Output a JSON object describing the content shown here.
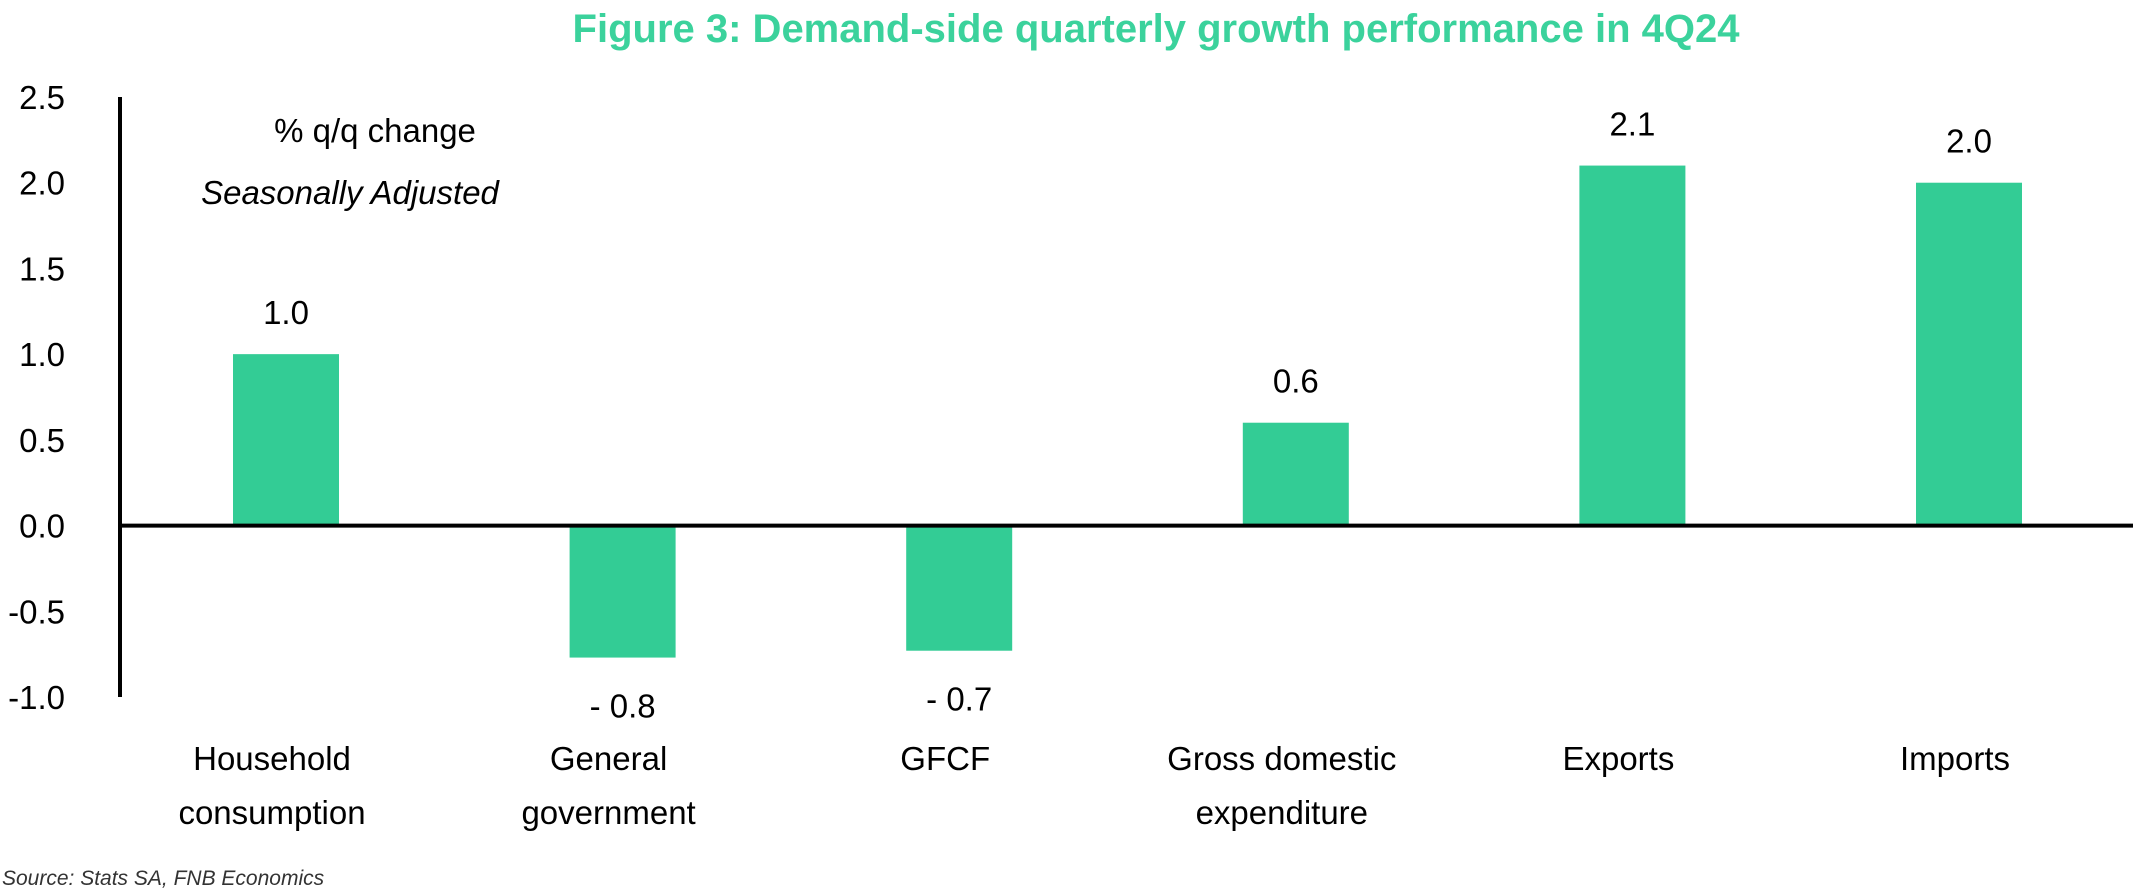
{
  "chart_data": {
    "type": "bar",
    "title": "Figure 3: Demand-side quarterly growth performance in 4Q24",
    "unit_label": "% q/q change",
    "adjustment_label": "Seasonally Adjusted",
    "categories": [
      [
        "Household",
        "consumption"
      ],
      [
        "General",
        "government"
      ],
      [
        "GFCF"
      ],
      [
        "Gross domestic",
        "expenditure"
      ],
      [
        "Exports"
      ],
      [
        "Imports"
      ]
    ],
    "values": [
      1.0,
      -0.77,
      -0.73,
      0.6,
      2.1,
      2.0
    ],
    "data_labels": [
      "1.0",
      "- 0.8",
      "- 0.7",
      "0.6",
      "2.1",
      "2.0"
    ],
    "ylim": [
      -1.0,
      2.5
    ],
    "yticks": [
      "2.5",
      "2.0",
      "1.5",
      "1.0",
      "0.5",
      "0.0",
      "-0.5",
      "-1.0"
    ],
    "ytick_values": [
      2.5,
      2.0,
      1.5,
      1.0,
      0.5,
      0.0,
      -0.5,
      -1.0
    ],
    "grid": false,
    "bar_color": "#33cc95",
    "source": "Source: Stats SA, FNB Economics"
  }
}
